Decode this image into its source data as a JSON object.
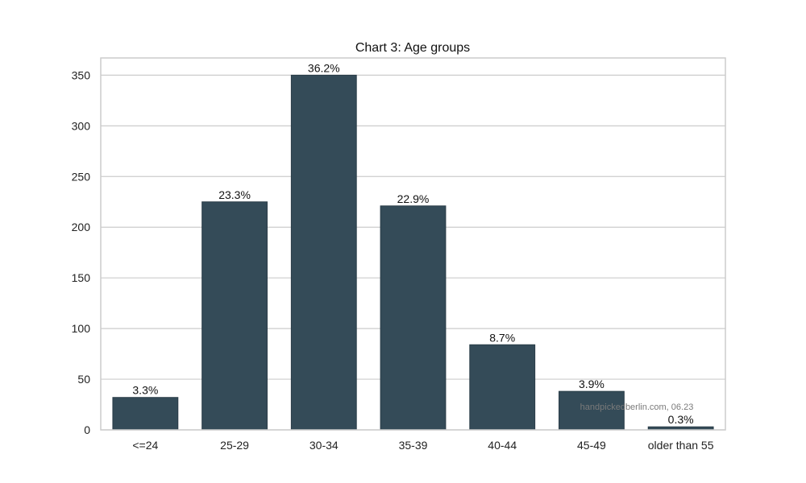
{
  "chart_data": {
    "type": "bar",
    "title": "Chart 3: Age groups",
    "xlabel": "",
    "ylabel": "",
    "categories": [
      "<=24",
      "25-29",
      "30-34",
      "35-39",
      "40-44",
      "45-49",
      "older than 55"
    ],
    "values": [
      32,
      225,
      350,
      221,
      84,
      38,
      3
    ],
    "data_labels": [
      "3.3%",
      "23.3%",
      "36.2%",
      "22.9%",
      "8.7%",
      "3.9%",
      "0.3%"
    ],
    "ylim": [
      0,
      367
    ],
    "yticks": [
      0,
      50,
      100,
      150,
      200,
      250,
      300,
      350
    ],
    "grid": "horizontal",
    "bar_color": "#344b58",
    "grid_color": "#cccccc",
    "frame_color": "#cccccc",
    "watermark": "handpickedberlin.com, 06.23"
  }
}
